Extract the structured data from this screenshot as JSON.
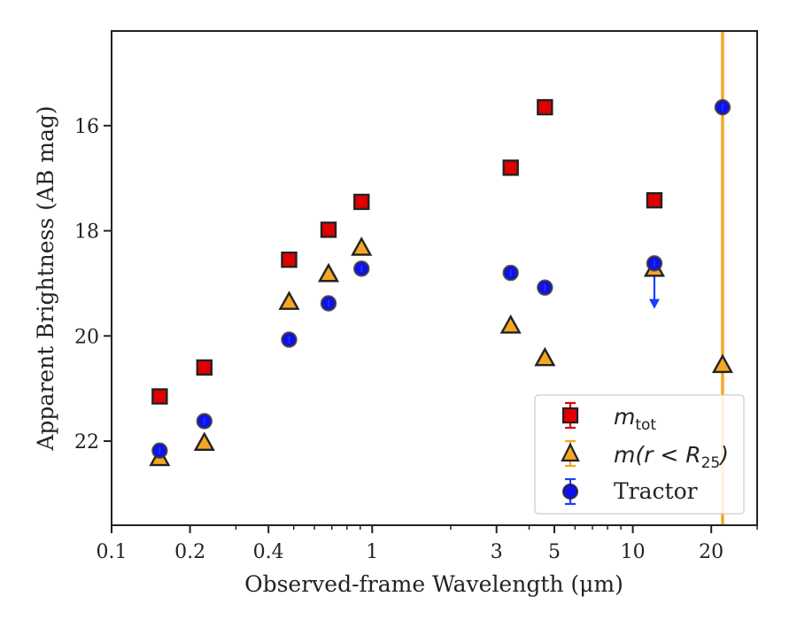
{
  "chart_data": {
    "type": "scatter",
    "xlabel": "Observed-frame Wavelength (μm)",
    "ylabel": "Apparent Brightness (AB mag)",
    "xscale": "log",
    "xlim": [
      0.1,
      30
    ],
    "ylim": [
      23.6,
      14.2
    ],
    "y_inverted": true,
    "x_ticks": [
      0.1,
      0.2,
      0.4,
      1,
      3,
      5,
      10,
      20
    ],
    "x_tick_labels": [
      "0.1",
      "0.2",
      "0.4",
      "1",
      "3",
      "5",
      "10",
      "20"
    ],
    "y_ticks": [
      16,
      18,
      20,
      22
    ],
    "y_tick_labels": [
      "16",
      "18",
      "20",
      "22"
    ],
    "legend_position": "lower-right",
    "vertical_line": {
      "x": 22.1,
      "color": "#f5a623"
    },
    "series": [
      {
        "name": "m_tot",
        "legend_main": "m",
        "legend_sub": "tot",
        "marker": "square",
        "color": "#e00000",
        "x": [
          0.153,
          0.227,
          0.48,
          0.68,
          0.91,
          3.4,
          4.6,
          12.1
        ],
        "y": [
          21.15,
          20.6,
          18.55,
          17.98,
          17.45,
          16.8,
          15.65,
          17.42
        ]
      },
      {
        "name": "m(r < R_25)",
        "legend_main": "m",
        "legend_paren": "(r < R",
        "legend_sub": "25",
        "legend_close": ")",
        "marker": "triangle",
        "color": "#f5a623",
        "x": [
          0.153,
          0.227,
          0.48,
          0.68,
          0.91,
          3.4,
          4.6,
          12.1,
          22.1
        ],
        "y": [
          22.32,
          22.03,
          19.35,
          18.82,
          18.32,
          19.8,
          20.42,
          18.72,
          20.55
        ]
      },
      {
        "name": "Tractor",
        "marker": "circle",
        "color": "#1010ee",
        "x": [
          0.153,
          0.227,
          0.48,
          0.68,
          0.91,
          3.4,
          4.6,
          12.1,
          22.1
        ],
        "y": [
          22.18,
          21.62,
          20.07,
          19.38,
          18.72,
          18.8,
          19.08,
          18.62,
          15.65
        ]
      }
    ],
    "upper_limit_arrow": {
      "x": 12.1,
      "from": 18.62,
      "to": 19.45,
      "color": "#1a3cff"
    }
  }
}
